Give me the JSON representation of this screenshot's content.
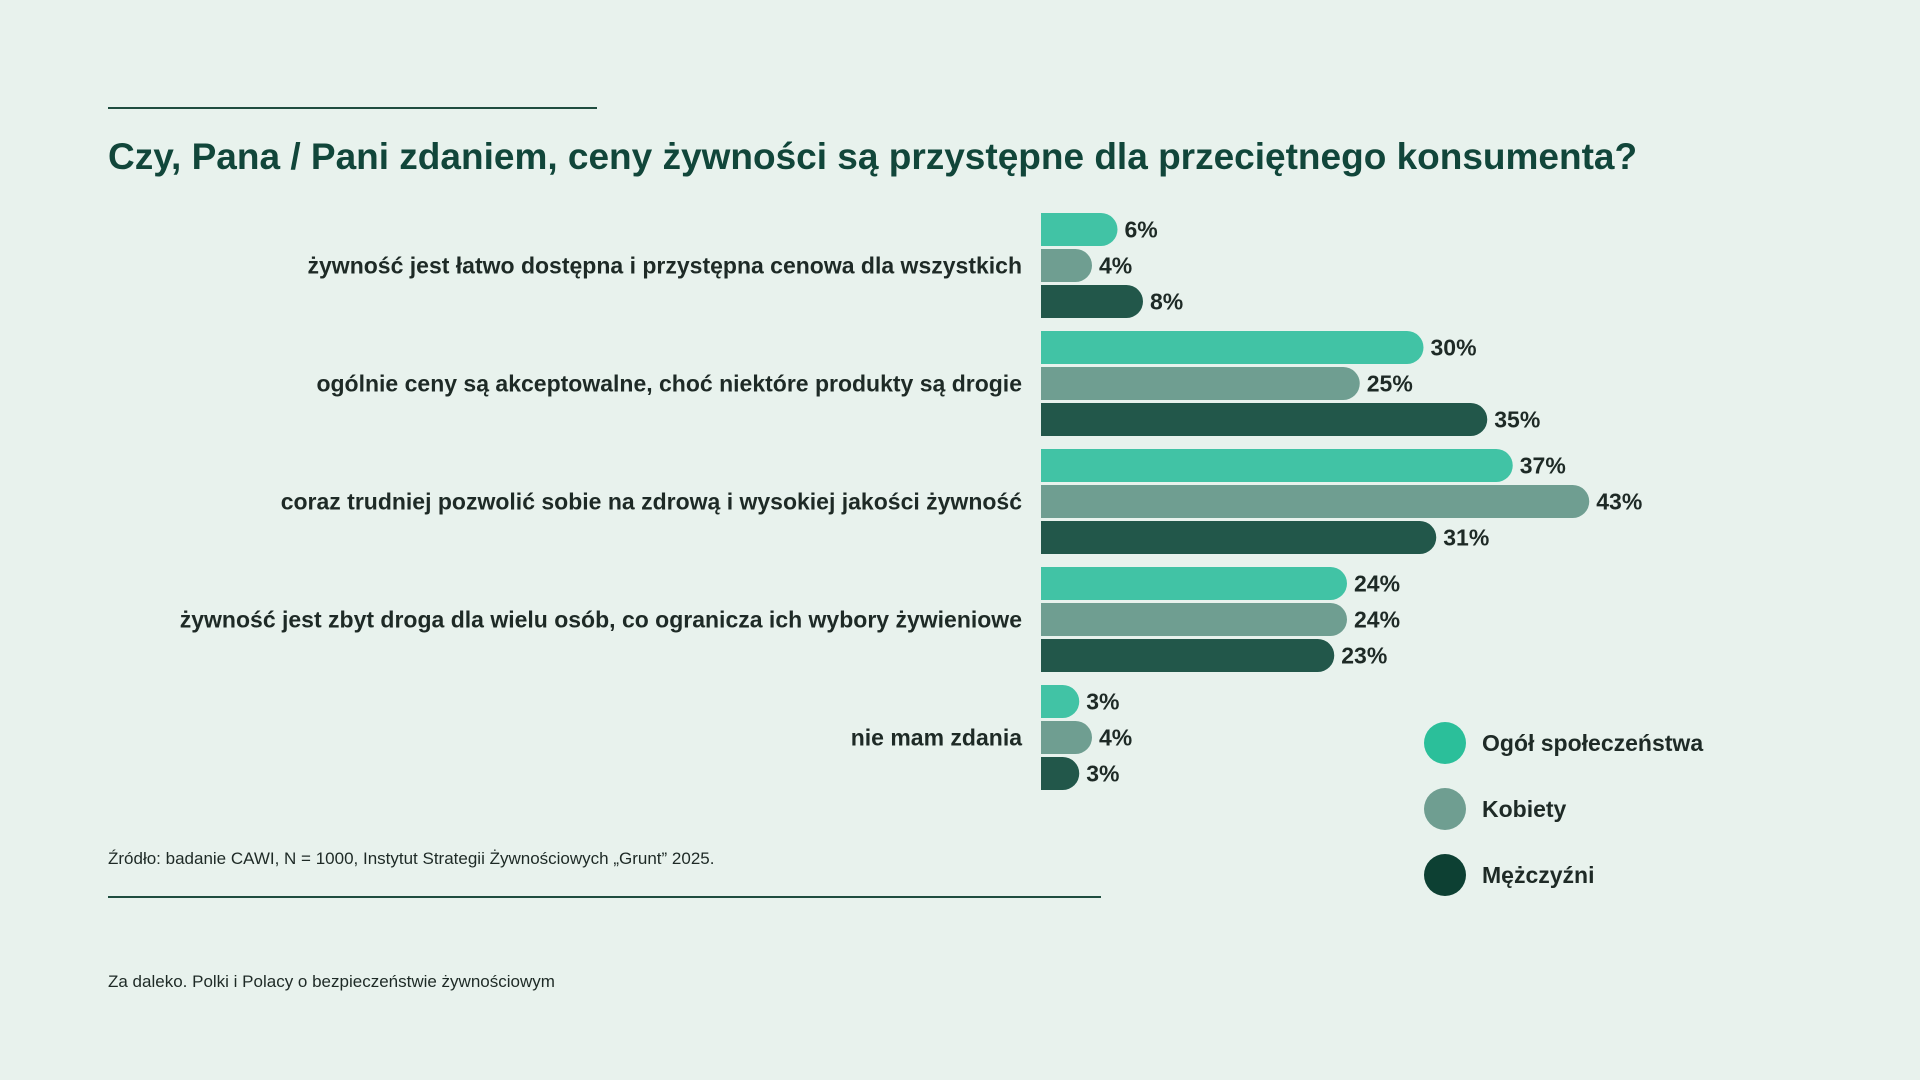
{
  "title": "Czy, Pana / Pani zdaniem, ceny żywności są przystępne dla przeciętnego konsumenta?",
  "source": "Źródło: badanie CAWI, N = 1000, Instytut Strategii Żywnościowych „Grunt” 2025.",
  "footer": "Za daleko. Polki i Polacy o bezpieczeństwie żywnościowym",
  "colors": {
    "background": "#e8f2ed",
    "title": "#11463a"
  },
  "chart_data": {
    "type": "bar",
    "orientation": "horizontal",
    "categories": [
      "żywność jest łatwo dostępna i przystępna cenowa dla wszystkich",
      "ogólnie ceny są akceptowalne, choć niektóre produkty są drogie",
      "coraz trudniej pozwolić sobie na zdrową i wysokiej jakości żywność",
      "żywność jest zbyt droga dla wielu osób, co ogranicza ich wybory żywieniowe",
      "nie mam zdania"
    ],
    "series": [
      {
        "name": "Ogół społeczeństwa",
        "color": "#41c3a5",
        "legend_color": "#2bbf9a",
        "values": [
          6,
          30,
          37,
          24,
          3
        ]
      },
      {
        "name": "Kobiety",
        "color": "#6f9e91",
        "legend_color": "#6f9e91",
        "values": [
          4,
          25,
          43,
          24,
          4
        ]
      },
      {
        "name": "Mężczyźni",
        "color": "#22574a",
        "legend_color": "#0d4033",
        "values": [
          8,
          35,
          31,
          23,
          3
        ]
      }
    ],
    "value_suffix": "%",
    "legend_position": "bottom-right",
    "grid": false
  }
}
